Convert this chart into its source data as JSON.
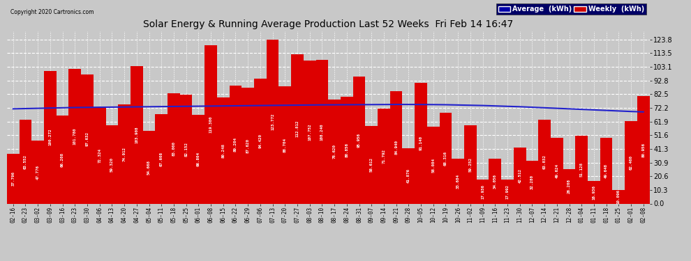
{
  "title": "Solar Energy & Running Average Production Last 52 Weeks  Fri Feb 14 16:47",
  "copyright": "Copyright 2020 Cartronics.com",
  "legend_avg": "Average  (kWh)",
  "legend_weekly": "Weekly  (kWh)",
  "bar_color": "#dd0000",
  "avg_line_color": "#2222cc",
  "background_color": "#c8c8c8",
  "plot_bg_color": "#c8c8c8",
  "ylim": [
    0,
    130
  ],
  "yticks": [
    0.0,
    10.3,
    20.6,
    30.9,
    41.3,
    51.6,
    61.9,
    72.2,
    82.5,
    92.8,
    103.1,
    113.5,
    123.8
  ],
  "categories": [
    "02-16",
    "02-23",
    "03-02",
    "03-09",
    "03-16",
    "03-23",
    "03-30",
    "04-06",
    "04-13",
    "04-20",
    "04-27",
    "05-04",
    "05-11",
    "05-18",
    "05-25",
    "06-01",
    "06-08",
    "06-15",
    "06-22",
    "06-29",
    "07-06",
    "07-13",
    "07-20",
    "07-27",
    "08-03",
    "08-10",
    "08-17",
    "08-24",
    "08-31",
    "09-07",
    "09-14",
    "09-21",
    "09-28",
    "10-05",
    "10-12",
    "10-19",
    "10-26",
    "11-02",
    "11-09",
    "11-16",
    "11-23",
    "11-30",
    "12-07",
    "12-14",
    "12-21",
    "12-28",
    "01-04",
    "01-11",
    "01-18",
    "01-25",
    "02-01",
    "02-08"
  ],
  "weekly_values": [
    37.796,
    63.552,
    47.776,
    100.272,
    66.208,
    101.78,
    97.632,
    72.324,
    59.32,
    74.912,
    103.908,
    54.668,
    67.608,
    83.0,
    82.152,
    66.804,
    119.3,
    80.248,
    89.204,
    87.62,
    94.42,
    123.772,
    88.704,
    112.812,
    107.752,
    108.24,
    78.62,
    80.856,
    95.956,
    58.612,
    71.792,
    84.94,
    41.876,
    91.14,
    58.084,
    68.316,
    33.684,
    59.252,
    17.936,
    34.056,
    17.992,
    42.512,
    32.28,
    63.032,
    49.624,
    26.208,
    51.128,
    16.936,
    49.648,
    10.096,
    62.46,
    80.956
  ],
  "avg_values": [
    71.5,
    71.7,
    71.9,
    72.1,
    72.3,
    72.5,
    72.6,
    72.7,
    72.8,
    72.9,
    73.0,
    73.1,
    73.2,
    73.3,
    73.4,
    73.5,
    73.6,
    73.7,
    73.8,
    73.9,
    74.0,
    74.1,
    74.2,
    74.3,
    74.4,
    74.5,
    74.55,
    74.6,
    74.65,
    74.7,
    74.75,
    74.8,
    74.8,
    74.75,
    74.7,
    74.6,
    74.4,
    74.2,
    74.0,
    73.7,
    73.4,
    73.1,
    72.7,
    72.3,
    71.9,
    71.5,
    71.1,
    70.7,
    70.3,
    69.9,
    69.5,
    69.2
  ],
  "label_values": [
    "37.796",
    "63.552",
    "47.776",
    "100.272",
    "66.208",
    "101.780",
    "97.632",
    "72.324",
    "59.320",
    "74.912",
    "103.908",
    "54.668",
    "67.608",
    "83.000",
    "82.152",
    "66.804",
    "119.300",
    "80.248",
    "89.204",
    "87.620",
    "94.420",
    "123.772",
    "88.704",
    "112.812",
    "107.752",
    "108.240",
    "78.620",
    "80.856",
    "95.956",
    "58.612",
    "71.792",
    "84.940",
    "41.876",
    "91.140",
    "58.084",
    "68.316",
    "33.684",
    "59.252",
    "17.936",
    "34.056",
    "17.992",
    "42.512",
    "32.280",
    "63.032",
    "49.624",
    "26.208",
    "51.128",
    "16.936",
    "49.648",
    "10.096",
    "62.460",
    "80.956"
  ]
}
